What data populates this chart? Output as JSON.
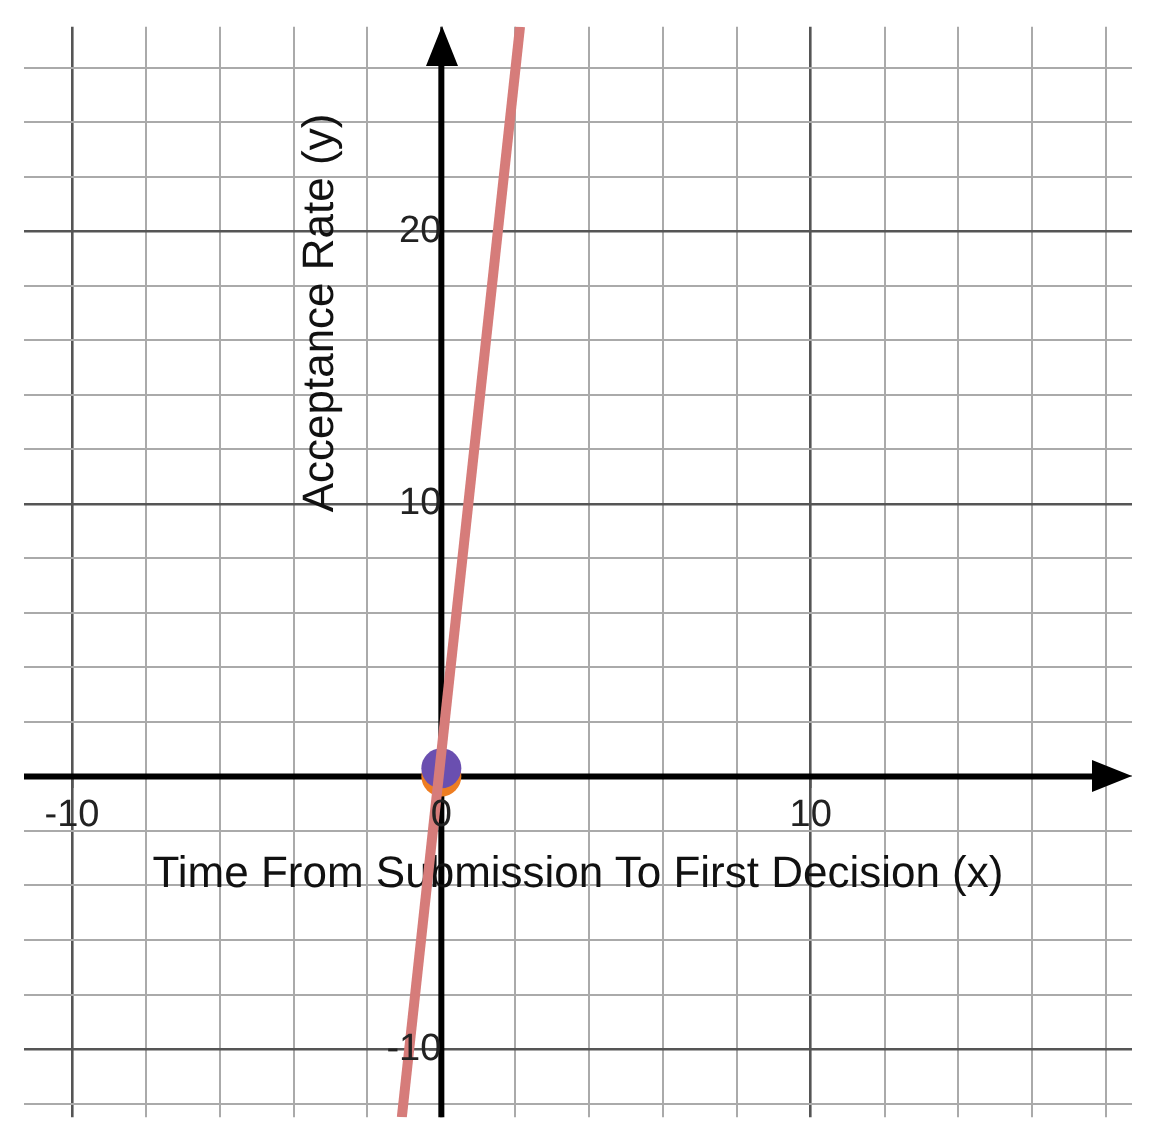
{
  "chart_data": {
    "type": "line",
    "xlabel": "Time From Submission To First Decision (x)",
    "ylabel": "Acceptance Rate (y)",
    "xlim": [
      -11.3,
      18.7
    ],
    "ylim": [
      -12.5,
      27.5
    ],
    "xticks": [
      -10,
      {
        "value": -8,
        "label": null
      },
      {
        "value": -6,
        "label": null
      },
      {
        "value": -4,
        "label": null
      },
      {
        "value": -2,
        "label": null
      },
      0,
      {
        "value": 2,
        "label": null
      },
      {
        "value": 4,
        "label": null
      },
      {
        "value": 6,
        "label": null
      },
      {
        "value": 8,
        "label": null
      },
      10,
      {
        "value": 12,
        "label": null
      },
      {
        "value": 14,
        "label": null
      },
      {
        "value": 16,
        "label": null
      },
      {
        "value": 18,
        "label": null
      }
    ],
    "yticks": [
      {
        "value": -12,
        "label": null
      },
      -10,
      {
        "value": -8,
        "label": null
      },
      {
        "value": -6,
        "label": null
      },
      {
        "value": -4,
        "label": null
      },
      {
        "value": -2,
        "label": null
      },
      {
        "value": 0,
        "label": null
      },
      {
        "value": 2,
        "label": null
      },
      {
        "value": 4,
        "label": null
      },
      {
        "value": 6,
        "label": null
      },
      {
        "value": 8,
        "label": null
      },
      10,
      {
        "value": 12,
        "label": null
      },
      {
        "value": 14,
        "label": null
      },
      {
        "value": 16,
        "label": null
      },
      {
        "value": 18,
        "label": null
      },
      20,
      {
        "value": 22,
        "label": null
      },
      {
        "value": 24,
        "label": null
      },
      {
        "value": 26,
        "label": null
      }
    ],
    "grid": true,
    "marker": "circle",
    "series": [
      {
        "type": "line",
        "color": "#d67c7a",
        "x": [
          -1.07,
          2.13
        ],
        "values": [
          -12.5,
          27.5
        ],
        "marker": "none"
      },
      {
        "type": "scatter",
        "color": "#6a4fb0",
        "x": [
          0
        ],
        "values": [
          0.3
        ]
      },
      {
        "type": "scatter",
        "color": "#ee7d22",
        "x": [
          0
        ],
        "values": [
          0
        ]
      }
    ]
  }
}
